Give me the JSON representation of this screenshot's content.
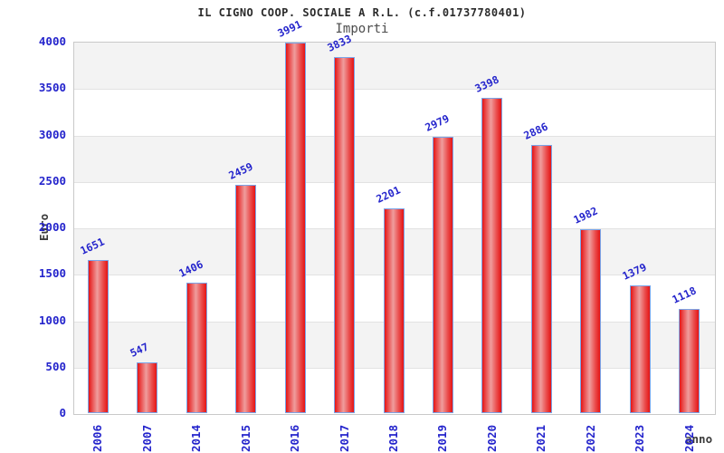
{
  "chart_data": {
    "type": "bar",
    "title": "IL CIGNO COOP. SOCIALE A R.L. (c.f.01737780401)",
    "subtitle": "Importi",
    "xlabel": "anno",
    "ylabel": "Euro",
    "categories": [
      "2006",
      "2007",
      "2014",
      "2015",
      "2016",
      "2017",
      "2018",
      "2019",
      "2020",
      "2021",
      "2022",
      "2023",
      "2024"
    ],
    "values": [
      1651,
      547,
      1406,
      2459,
      3991,
      3833,
      2201,
      2979,
      3398,
      2886,
      1982,
      1379,
      1118
    ],
    "ylim": [
      0,
      4000
    ],
    "ytick_step": 500,
    "grid": "horizontal-alternating-bands",
    "legend": "none",
    "colors": {
      "bar_edge": "#e51414",
      "bar_center": "#ef9d9d",
      "bar_border": "#7aa4e8",
      "label_blue": "#2424cc",
      "title_text": "#2b2b2b",
      "axis_title_text": "#3c3c3c",
      "band_gray": "#f3f3f3",
      "band_white": "#ffffff",
      "grid_line": "#e2e2e2",
      "plot_border": "#c9c9c9"
    }
  }
}
